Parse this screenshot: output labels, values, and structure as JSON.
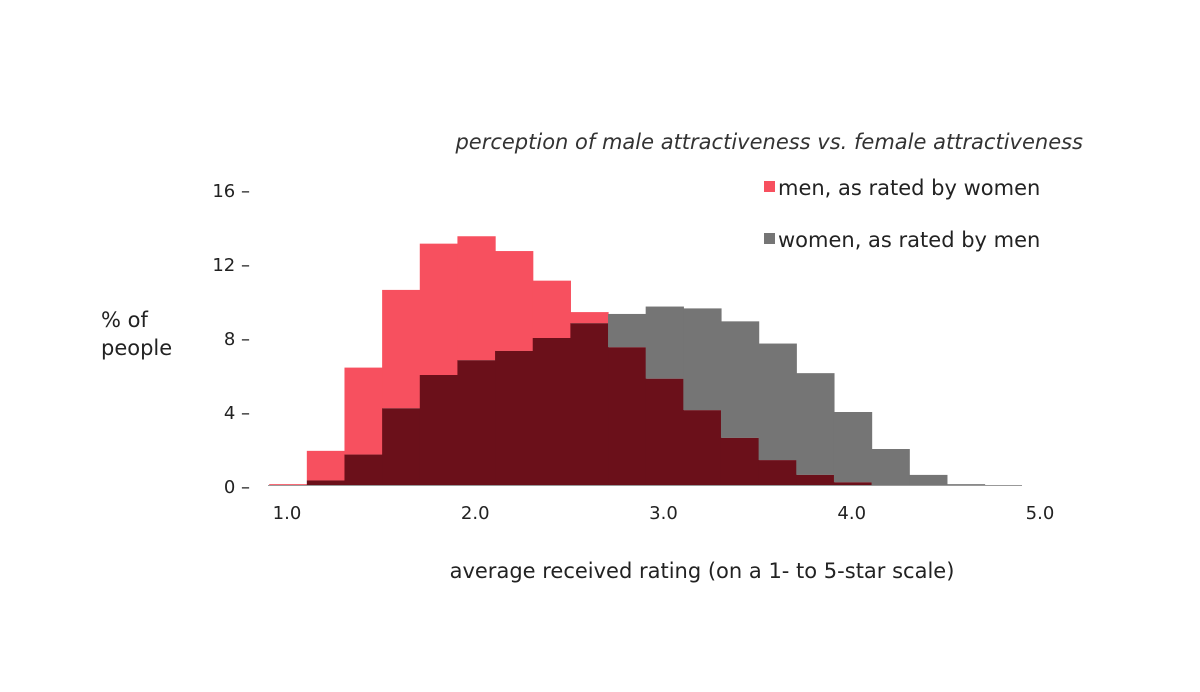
{
  "chart_data": {
    "type": "histogram",
    "title": "perception of male attractiveness vs. female attractiveness",
    "xlabel": "average received rating (on a 1- to 5-star scale)",
    "ylabel_lines": [
      "% of",
      "people"
    ],
    "xlim": [
      0.9,
      5.0
    ],
    "ylim": [
      0,
      16
    ],
    "x_ticks": [
      {
        "value": 1.0,
        "label": "1.0"
      },
      {
        "value": 2.0,
        "label": "2.0"
      },
      {
        "value": 3.0,
        "label": "3.0"
      },
      {
        "value": 4.0,
        "label": "4.0"
      },
      {
        "value": 5.0,
        "label": "5.0"
      }
    ],
    "y_ticks": [
      {
        "value": 0,
        "label": "0 –"
      },
      {
        "value": 4,
        "label": "4 –"
      },
      {
        "value": 8,
        "label": "8 –"
      },
      {
        "value": 12,
        "label": "12 –"
      },
      {
        "value": 16,
        "label": "16 –"
      }
    ],
    "bin_width": 0.2,
    "bin_starts": [
      0.9,
      1.1,
      1.3,
      1.5,
      1.7,
      1.9,
      2.1,
      2.3,
      2.5,
      2.7,
      2.9,
      3.1,
      3.3,
      3.5,
      3.7,
      3.9,
      4.1,
      4.3,
      4.5,
      4.7
    ],
    "series": [
      {
        "name": "men, as rated by women",
        "color": "#f7505f",
        "values": [
          0.1,
          1.9,
          6.4,
          10.6,
          13.1,
          13.5,
          12.7,
          11.1,
          9.4,
          7.5,
          5.8,
          4.1,
          2.6,
          1.4,
          0.6,
          0.2,
          0,
          0,
          0,
          0
        ]
      },
      {
        "name": "women, as rated by men",
        "color": "#757575",
        "values": [
          0,
          0.3,
          1.7,
          4.2,
          6.0,
          6.8,
          7.3,
          8.0,
          8.8,
          9.3,
          9.7,
          9.6,
          8.9,
          7.7,
          6.1,
          4.0,
          2.0,
          0.6,
          0.1,
          0
        ]
      }
    ],
    "overlap_color": "#6b101a",
    "legend_position": "top-right"
  }
}
